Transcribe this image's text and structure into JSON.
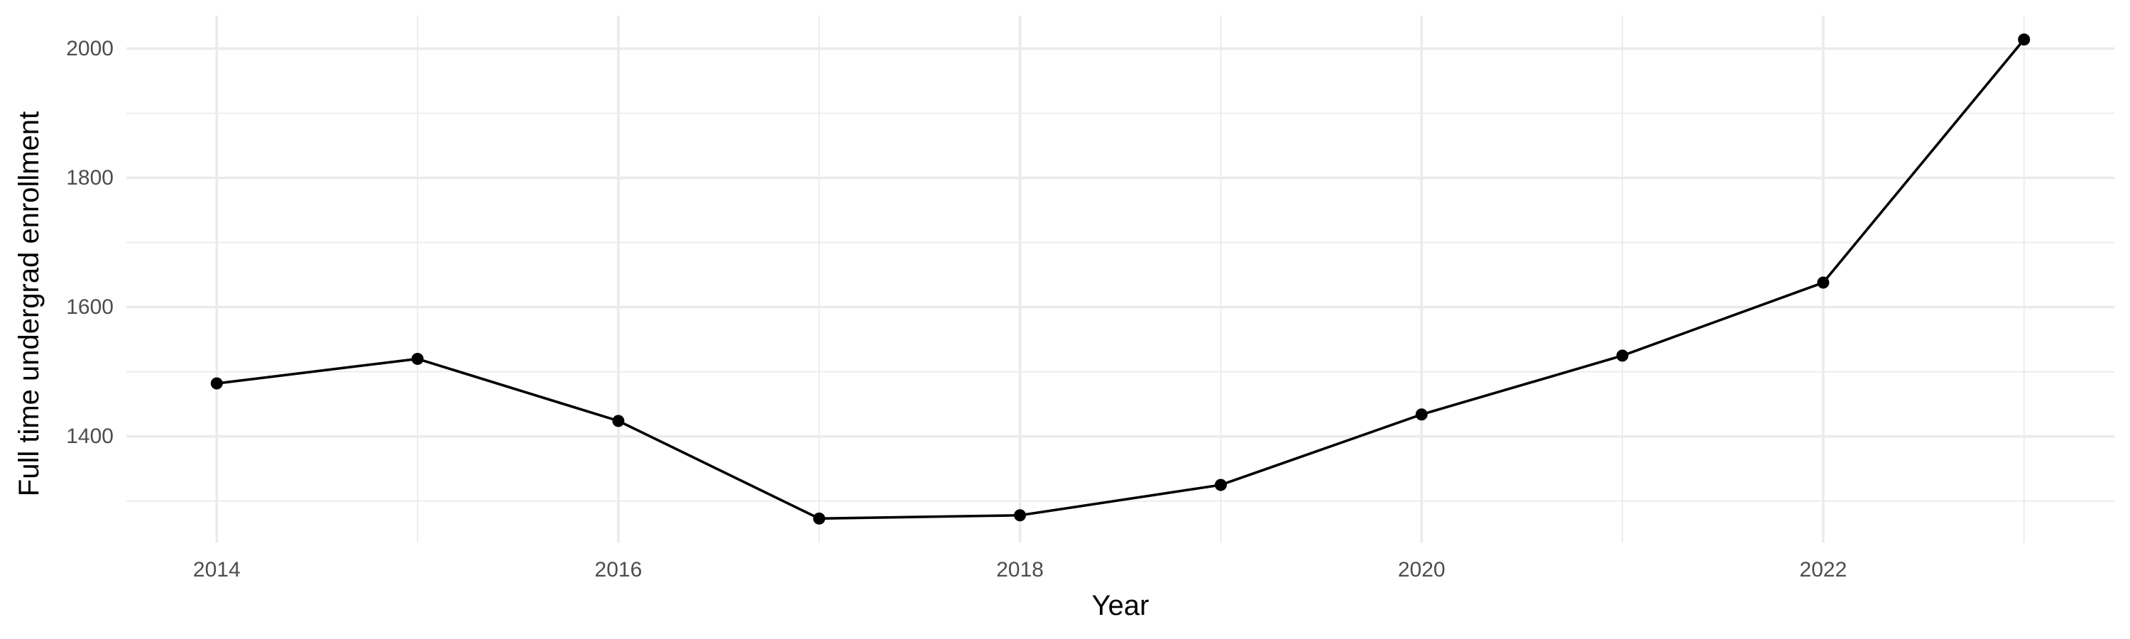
{
  "chart_data": {
    "type": "line",
    "title": "",
    "xlabel": "Year",
    "ylabel": "Full time undergrad enrollment",
    "x": [
      2014,
      2015,
      2016,
      2017,
      2018,
      2019,
      2020,
      2021,
      2022,
      2023
    ],
    "series": [
      {
        "values": [
          1482,
          1520,
          1424,
          1273,
          1278,
          1325,
          1434,
          1525,
          1638,
          2014
        ]
      }
    ],
    "x_ticks": [
      "2014",
      "2016",
      "2018",
      "2020",
      "2022"
    ],
    "y_ticks": [
      "1400",
      "1600",
      "1800",
      "2000"
    ],
    "xlim": [
      2013.55,
      2023.45
    ],
    "ylim": [
      1236,
      2051
    ],
    "grid": true,
    "legend": "none",
    "colors": {
      "line": "#000000",
      "point": "#000000",
      "grid": "#ebebeb",
      "tick_text": "#4d4d4d",
      "axis_title": "#000000",
      "background": "#ffffff"
    }
  }
}
